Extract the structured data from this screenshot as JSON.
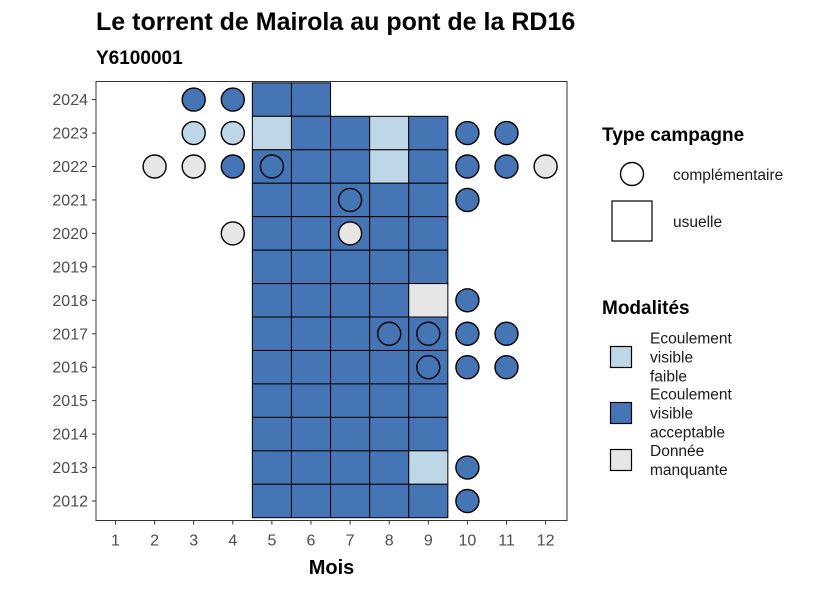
{
  "chart_data": {
    "type": "heatmap",
    "title": "Le torrent de Mairola au pont de la RD16",
    "subtitle": "Y6100001",
    "xlabel": "Mois",
    "ylabel": "",
    "x_categories": [
      "1",
      "2",
      "3",
      "4",
      "5",
      "6",
      "7",
      "8",
      "9",
      "10",
      "11",
      "12"
    ],
    "y_categories": [
      "2012",
      "2013",
      "2014",
      "2015",
      "2016",
      "2017",
      "2018",
      "2019",
      "2020",
      "2021",
      "2022",
      "2023",
      "2024"
    ],
    "grid": false,
    "legend_position": "right",
    "colors": {
      "Ecoulement visible faible": "#bdd7e7",
      "Ecoulement visible acceptable": "#4575b4",
      "Donnée manquante": "#e6e6e6"
    },
    "legends": [
      {
        "title": "Type campagne",
        "entries": [
          {
            "label": "complémentaire",
            "shape": "circle"
          },
          {
            "label": "usuelle",
            "shape": "square"
          }
        ]
      },
      {
        "title": "Modalités",
        "entries": [
          {
            "label_lines": [
              "Ecoulement",
              "visible",
              "faible"
            ],
            "color": "#bdd7e7"
          },
          {
            "label_lines": [
              "Ecoulement",
              "visible",
              "acceptable"
            ],
            "color": "#4575b4"
          },
          {
            "label_lines": [
              "Donnée",
              "manquante"
            ],
            "color": "#e6e6e6"
          }
        ]
      }
    ],
    "usuelle": [
      {
        "year": "2024",
        "month": 5,
        "value": "Ecoulement visible acceptable"
      },
      {
        "year": "2024",
        "month": 6,
        "value": "Ecoulement visible acceptable"
      },
      {
        "year": "2023",
        "month": 5,
        "value": "Ecoulement visible faible"
      },
      {
        "year": "2023",
        "month": 6,
        "value": "Ecoulement visible acceptable"
      },
      {
        "year": "2023",
        "month": 7,
        "value": "Ecoulement visible acceptable"
      },
      {
        "year": "2023",
        "month": 8,
        "value": "Ecoulement visible faible"
      },
      {
        "year": "2023",
        "month": 9,
        "value": "Ecoulement visible acceptable"
      },
      {
        "year": "2022",
        "month": 5,
        "value": "Ecoulement visible acceptable"
      },
      {
        "year": "2022",
        "month": 6,
        "value": "Ecoulement visible acceptable"
      },
      {
        "year": "2022",
        "month": 7,
        "value": "Ecoulement visible acceptable"
      },
      {
        "year": "2022",
        "month": 8,
        "value": "Ecoulement visible faible"
      },
      {
        "year": "2022",
        "month": 9,
        "value": "Ecoulement visible acceptable"
      },
      {
        "year": "2021",
        "month": 5,
        "value": "Ecoulement visible acceptable"
      },
      {
        "year": "2021",
        "month": 6,
        "value": "Ecoulement visible acceptable"
      },
      {
        "year": "2021",
        "month": 7,
        "value": "Ecoulement visible acceptable"
      },
      {
        "year": "2021",
        "month": 8,
        "value": "Ecoulement visible acceptable"
      },
      {
        "year": "2021",
        "month": 9,
        "value": "Ecoulement visible acceptable"
      },
      {
        "year": "2020",
        "month": 5,
        "value": "Ecoulement visible acceptable"
      },
      {
        "year": "2020",
        "month": 6,
        "value": "Ecoulement visible acceptable"
      },
      {
        "year": "2020",
        "month": 7,
        "value": "Ecoulement visible acceptable"
      },
      {
        "year": "2020",
        "month": 8,
        "value": "Ecoulement visible acceptable"
      },
      {
        "year": "2020",
        "month": 9,
        "value": "Ecoulement visible acceptable"
      },
      {
        "year": "2019",
        "month": 5,
        "value": "Ecoulement visible acceptable"
      },
      {
        "year": "2019",
        "month": 6,
        "value": "Ecoulement visible acceptable"
      },
      {
        "year": "2019",
        "month": 7,
        "value": "Ecoulement visible acceptable"
      },
      {
        "year": "2019",
        "month": 8,
        "value": "Ecoulement visible acceptable"
      },
      {
        "year": "2019",
        "month": 9,
        "value": "Ecoulement visible acceptable"
      },
      {
        "year": "2018",
        "month": 5,
        "value": "Ecoulement visible acceptable"
      },
      {
        "year": "2018",
        "month": 6,
        "value": "Ecoulement visible acceptable"
      },
      {
        "year": "2018",
        "month": 7,
        "value": "Ecoulement visible acceptable"
      },
      {
        "year": "2018",
        "month": 8,
        "value": "Ecoulement visible acceptable"
      },
      {
        "year": "2018",
        "month": 9,
        "value": "Donnée manquante"
      },
      {
        "year": "2017",
        "month": 5,
        "value": "Ecoulement visible acceptable"
      },
      {
        "year": "2017",
        "month": 6,
        "value": "Ecoulement visible acceptable"
      },
      {
        "year": "2017",
        "month": 7,
        "value": "Ecoulement visible acceptable"
      },
      {
        "year": "2017",
        "month": 8,
        "value": "Ecoulement visible acceptable"
      },
      {
        "year": "2017",
        "month": 9,
        "value": "Ecoulement visible acceptable"
      },
      {
        "year": "2016",
        "month": 5,
        "value": "Ecoulement visible acceptable"
      },
      {
        "year": "2016",
        "month": 6,
        "value": "Ecoulement visible acceptable"
      },
      {
        "year": "2016",
        "month": 7,
        "value": "Ecoulement visible acceptable"
      },
      {
        "year": "2016",
        "month": 8,
        "value": "Ecoulement visible acceptable"
      },
      {
        "year": "2016",
        "month": 9,
        "value": "Ecoulement visible acceptable"
      },
      {
        "year": "2015",
        "month": 5,
        "value": "Ecoulement visible acceptable"
      },
      {
        "year": "2015",
        "month": 6,
        "value": "Ecoulement visible acceptable"
      },
      {
        "year": "2015",
        "month": 7,
        "value": "Ecoulement visible acceptable"
      },
      {
        "year": "2015",
        "month": 8,
        "value": "Ecoulement visible acceptable"
      },
      {
        "year": "2015",
        "month": 9,
        "value": "Ecoulement visible acceptable"
      },
      {
        "year": "2014",
        "month": 5,
        "value": "Ecoulement visible acceptable"
      },
      {
        "year": "2014",
        "month": 6,
        "value": "Ecoulement visible acceptable"
      },
      {
        "year": "2014",
        "month": 7,
        "value": "Ecoulement visible acceptable"
      },
      {
        "year": "2014",
        "month": 8,
        "value": "Ecoulement visible acceptable"
      },
      {
        "year": "2014",
        "month": 9,
        "value": "Ecoulement visible acceptable"
      },
      {
        "year": "2013",
        "month": 5,
        "value": "Ecoulement visible acceptable"
      },
      {
        "year": "2013",
        "month": 6,
        "value": "Ecoulement visible acceptable"
      },
      {
        "year": "2013",
        "month": 7,
        "value": "Ecoulement visible acceptable"
      },
      {
        "year": "2013",
        "month": 8,
        "value": "Ecoulement visible acceptable"
      },
      {
        "year": "2013",
        "month": 9,
        "value": "Ecoulement visible faible"
      },
      {
        "year": "2012",
        "month": 5,
        "value": "Ecoulement visible acceptable"
      },
      {
        "year": "2012",
        "month": 6,
        "value": "Ecoulement visible acceptable"
      },
      {
        "year": "2012",
        "month": 7,
        "value": "Ecoulement visible acceptable"
      },
      {
        "year": "2012",
        "month": 8,
        "value": "Ecoulement visible acceptable"
      },
      {
        "year": "2012",
        "month": 9,
        "value": "Ecoulement visible acceptable"
      }
    ],
    "complementaire": [
      {
        "year": "2024",
        "month": 3,
        "value": "Ecoulement visible acceptable"
      },
      {
        "year": "2024",
        "month": 4,
        "value": "Ecoulement visible acceptable"
      },
      {
        "year": "2023",
        "month": 3,
        "value": "Ecoulement visible faible"
      },
      {
        "year": "2023",
        "month": 4,
        "value": "Ecoulement visible faible"
      },
      {
        "year": "2023",
        "month": 10,
        "value": "Ecoulement visible acceptable"
      },
      {
        "year": "2023",
        "month": 11,
        "value": "Ecoulement visible acceptable"
      },
      {
        "year": "2022",
        "month": 2,
        "value": "Donnée manquante"
      },
      {
        "year": "2022",
        "month": 3,
        "value": "Donnée manquante"
      },
      {
        "year": "2022",
        "month": 4,
        "value": "Ecoulement visible acceptable"
      },
      {
        "year": "2022",
        "month": 5,
        "value": "Ecoulement visible acceptable"
      },
      {
        "year": "2022",
        "month": 10,
        "value": "Ecoulement visible acceptable"
      },
      {
        "year": "2022",
        "month": 11,
        "value": "Ecoulement visible acceptable"
      },
      {
        "year": "2022",
        "month": 12,
        "value": "Donnée manquante"
      },
      {
        "year": "2021",
        "month": 7,
        "value": "Ecoulement visible acceptable"
      },
      {
        "year": "2021",
        "month": 10,
        "value": "Ecoulement visible acceptable"
      },
      {
        "year": "2020",
        "month": 4,
        "value": "Donnée manquante"
      },
      {
        "year": "2020",
        "month": 7,
        "value": "Donnée manquante"
      },
      {
        "year": "2018",
        "month": 10,
        "value": "Ecoulement visible acceptable"
      },
      {
        "year": "2017",
        "month": 8,
        "value": "Ecoulement visible acceptable"
      },
      {
        "year": "2017",
        "month": 9,
        "value": "Ecoulement visible acceptable"
      },
      {
        "year": "2017",
        "month": 10,
        "value": "Ecoulement visible acceptable"
      },
      {
        "year": "2017",
        "month": 11,
        "value": "Ecoulement visible acceptable"
      },
      {
        "year": "2016",
        "month": 9,
        "value": "Ecoulement visible acceptable"
      },
      {
        "year": "2016",
        "month": 10,
        "value": "Ecoulement visible acceptable"
      },
      {
        "year": "2016",
        "month": 11,
        "value": "Ecoulement visible acceptable"
      },
      {
        "year": "2013",
        "month": 10,
        "value": "Ecoulement visible acceptable"
      },
      {
        "year": "2012",
        "month": 10,
        "value": "Ecoulement visible acceptable"
      }
    ]
  }
}
